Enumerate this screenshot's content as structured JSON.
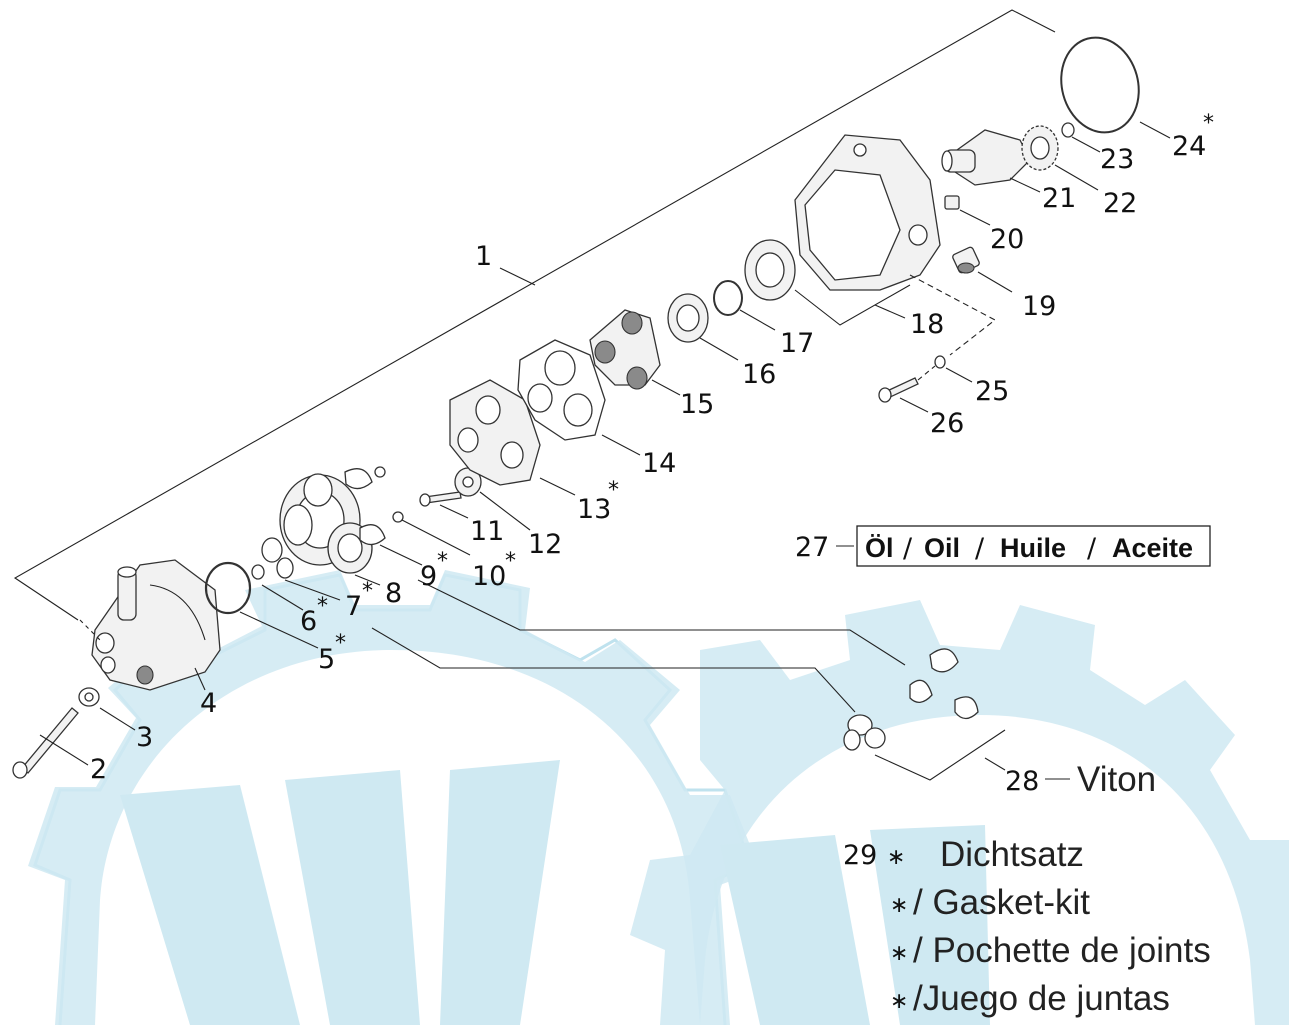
{
  "diagram": {
    "callouts": [
      {
        "id": "1",
        "label": "1",
        "kit": false
      },
      {
        "id": "2",
        "label": "2",
        "kit": false
      },
      {
        "id": "3",
        "label": "3",
        "kit": false
      },
      {
        "id": "4",
        "label": "4",
        "kit": false
      },
      {
        "id": "5",
        "label": "5",
        "kit": true
      },
      {
        "id": "6",
        "label": "6",
        "kit": true
      },
      {
        "id": "7",
        "label": "7",
        "kit": true
      },
      {
        "id": "8",
        "label": "8",
        "kit": false
      },
      {
        "id": "9",
        "label": "9",
        "kit": true
      },
      {
        "id": "10",
        "label": "10",
        "kit": true
      },
      {
        "id": "11",
        "label": "11",
        "kit": false
      },
      {
        "id": "12",
        "label": "12",
        "kit": false
      },
      {
        "id": "13",
        "label": "13",
        "kit": true
      },
      {
        "id": "14",
        "label": "14",
        "kit": false
      },
      {
        "id": "15",
        "label": "15",
        "kit": false
      },
      {
        "id": "16",
        "label": "16",
        "kit": false
      },
      {
        "id": "17",
        "label": "17",
        "kit": false
      },
      {
        "id": "18",
        "label": "18",
        "kit": false
      },
      {
        "id": "19",
        "label": "19",
        "kit": false
      },
      {
        "id": "20",
        "label": "20",
        "kit": false
      },
      {
        "id": "21",
        "label": "21",
        "kit": false
      },
      {
        "id": "22",
        "label": "22",
        "kit": false
      },
      {
        "id": "23",
        "label": "23",
        "kit": false
      },
      {
        "id": "24",
        "label": "24",
        "kit": true
      },
      {
        "id": "25",
        "label": "25",
        "kit": false
      },
      {
        "id": "26",
        "label": "26",
        "kit": false
      }
    ],
    "kit_marker": "*",
    "oil": {
      "number": "27",
      "de": "Öl",
      "en": "Oil",
      "fr": "Huile",
      "es": "Aceite",
      "separator": "/"
    },
    "viton": {
      "number": "28",
      "label": "Viton"
    },
    "gasket_kit": {
      "number": "29",
      "marker": "∗",
      "lines": [
        "Dichtsatz",
        "/ Gasket-kit",
        "/ Pochette de joints",
        "/Juego de juntas"
      ]
    },
    "watermark_color": "#cfe9f2"
  }
}
